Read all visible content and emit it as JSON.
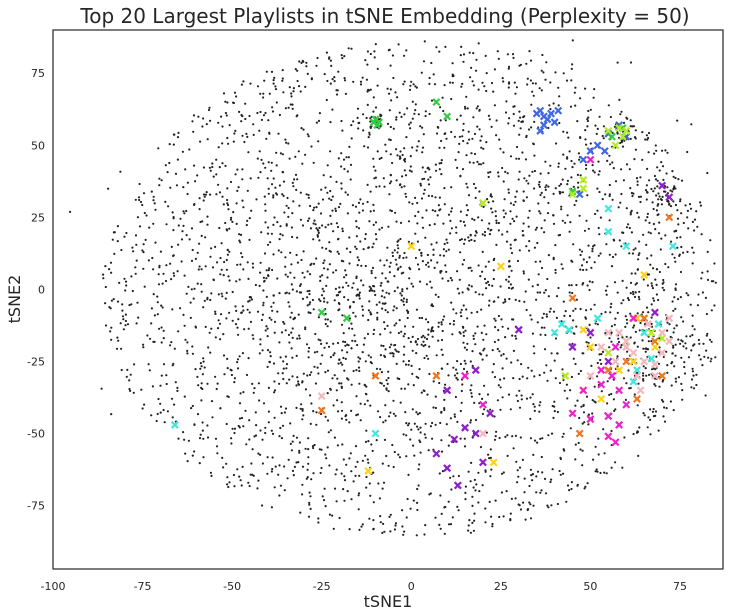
{
  "chart_data": {
    "type": "scatter",
    "title": "Top 20 Largest Playlists in tSNE Embedding (Perplexity = 50)",
    "xlabel": "tSNE1",
    "ylabel": "tSNE2",
    "xlim": [
      -100,
      87
    ],
    "ylim": [
      -97,
      90
    ],
    "xticks": [
      -100,
      -75,
      -50,
      -25,
      0,
      25,
      50,
      75
    ],
    "yticks": [
      -75,
      -50,
      -25,
      0,
      25,
      50,
      75
    ],
    "grid": false,
    "legend": "none",
    "background_points": {
      "description_color": "#222222",
      "marker": "dot",
      "clusters": [
        {
          "x": 0,
          "y": 0,
          "spread": 62,
          "n": 2600
        },
        {
          "x": -20,
          "y": -5,
          "spread": 25,
          "n": 500
        },
        {
          "x": 30,
          "y": 40,
          "spread": 25,
          "n": 250
        },
        {
          "x": 65,
          "y": -20,
          "spread": 10,
          "n": 160
        },
        {
          "x": 70,
          "y": 33,
          "spread": 3,
          "n": 40
        },
        {
          "x": -10,
          "y": 58,
          "spread": 2,
          "n": 20
        },
        {
          "x": 57,
          "y": 55,
          "spread": 3,
          "n": 25
        }
      ]
    },
    "series": [
      {
        "color": "#4169e1",
        "marker": "x",
        "points": [
          [
            35,
            61
          ],
          [
            36,
            62
          ],
          [
            37,
            60
          ],
          [
            38,
            59
          ],
          [
            39,
            61
          ],
          [
            40,
            58
          ],
          [
            41,
            62
          ],
          [
            37,
            57
          ],
          [
            36,
            55
          ],
          [
            55,
            54
          ],
          [
            58,
            57
          ],
          [
            52,
            50
          ],
          [
            60,
            53
          ],
          [
            50,
            48
          ],
          [
            54,
            48
          ],
          [
            48,
            45
          ],
          [
            47,
            33
          ]
        ]
      },
      {
        "color": "#33cc44",
        "marker": "x",
        "points": [
          [
            -9,
            58
          ],
          [
            -10,
            59
          ],
          [
            -9.5,
            57
          ],
          [
            -10.5,
            58
          ],
          [
            7,
            65
          ],
          [
            10,
            60
          ],
          [
            56,
            53
          ],
          [
            59,
            56
          ],
          [
            45,
            34
          ],
          [
            -25,
            -8
          ],
          [
            -18,
            -10
          ]
        ]
      },
      {
        "color": "#b4ee22",
        "marker": "x",
        "points": [
          [
            55,
            55
          ],
          [
            58,
            56
          ],
          [
            59,
            53
          ],
          [
            60,
            55
          ],
          [
            57,
            50
          ],
          [
            48,
            38
          ],
          [
            48,
            35
          ],
          [
            45,
            33
          ],
          [
            20,
            30
          ],
          [
            65,
            -10
          ],
          [
            67,
            -15
          ],
          [
            55,
            -22
          ],
          [
            60,
            -18
          ],
          [
            43,
            -30
          ],
          [
            70,
            -17
          ]
        ]
      },
      {
        "color": "#ffd21a",
        "marker": "x",
        "points": [
          [
            0,
            15
          ],
          [
            25,
            8
          ],
          [
            65,
            5
          ],
          [
            63,
            -10
          ],
          [
            48,
            -14
          ],
          [
            50,
            -20
          ],
          [
            48,
            -35
          ],
          [
            23,
            -60
          ],
          [
            -12,
            -63
          ],
          [
            58,
            -28
          ],
          [
            62,
            -25
          ],
          [
            68,
            -20
          ],
          [
            53,
            -38
          ]
        ]
      },
      {
        "color": "#ee7722",
        "marker": "x",
        "points": [
          [
            72,
            25
          ],
          [
            65,
            -10
          ],
          [
            45,
            -3
          ],
          [
            68,
            -18
          ],
          [
            60,
            -25
          ],
          [
            55,
            -28
          ],
          [
            63,
            -38
          ],
          [
            -10,
            -30
          ],
          [
            -25,
            -42
          ],
          [
            7,
            -30
          ],
          [
            47,
            -50
          ],
          [
            60,
            -20
          ],
          [
            70,
            -30
          ]
        ]
      },
      {
        "color": "#ee22cc",
        "marker": "x",
        "points": [
          [
            53,
            -28
          ],
          [
            56,
            -30
          ],
          [
            58,
            -35
          ],
          [
            60,
            -40
          ],
          [
            55,
            -44
          ],
          [
            58,
            -47
          ],
          [
            55,
            -51
          ],
          [
            57,
            -53
          ],
          [
            50,
            -45
          ],
          [
            45,
            -43
          ],
          [
            48,
            -35
          ],
          [
            62,
            -10
          ],
          [
            53,
            -33
          ],
          [
            57,
            -20
          ],
          [
            50,
            45
          ],
          [
            15,
            -30
          ],
          [
            20,
            -40
          ],
          [
            10,
            -35
          ]
        ]
      },
      {
        "color": "#8f1ecc",
        "marker": "x",
        "points": [
          [
            10,
            -35
          ],
          [
            15,
            -48
          ],
          [
            12,
            -52
          ],
          [
            7,
            -57
          ],
          [
            10,
            -62
          ],
          [
            13,
            -68
          ],
          [
            20,
            -60
          ],
          [
            18,
            -50
          ],
          [
            22,
            -43
          ],
          [
            45,
            -20
          ],
          [
            50,
            -15
          ],
          [
            55,
            -25
          ],
          [
            30,
            -14
          ],
          [
            68,
            -8
          ],
          [
            70,
            36
          ],
          [
            72,
            32
          ],
          [
            18,
            -28
          ]
        ]
      },
      {
        "color": "#40e8e0",
        "marker": "x",
        "points": [
          [
            -66,
            -47
          ],
          [
            55,
            20
          ],
          [
            55,
            28
          ],
          [
            73,
            15
          ],
          [
            65,
            -15
          ],
          [
            69,
            -12
          ],
          [
            67,
            -24
          ],
          [
            63,
            -28
          ],
          [
            62,
            -32
          ],
          [
            42,
            -12
          ],
          [
            44,
            -14
          ],
          [
            40,
            -15
          ],
          [
            60,
            15
          ],
          [
            52,
            -10
          ],
          [
            -10,
            -50
          ]
        ]
      },
      {
        "color": "#f5b8c0",
        "marker": "x",
        "points": [
          [
            58,
            -15
          ],
          [
            60,
            -18
          ],
          [
            62,
            -22
          ],
          [
            65,
            -25
          ],
          [
            68,
            -26
          ],
          [
            70,
            -22
          ],
          [
            72,
            -18
          ],
          [
            63,
            -30
          ],
          [
            60,
            -20
          ],
          [
            55,
            -15
          ],
          [
            66,
            -12
          ],
          [
            68,
            -30
          ],
          [
            64,
            -35
          ],
          [
            57,
            -25
          ],
          [
            53,
            -20
          ],
          [
            72,
            -10
          ],
          [
            70,
            -15
          ],
          [
            50,
            -30
          ],
          [
            -25,
            -37
          ],
          [
            20,
            -50
          ]
        ]
      }
    ]
  }
}
